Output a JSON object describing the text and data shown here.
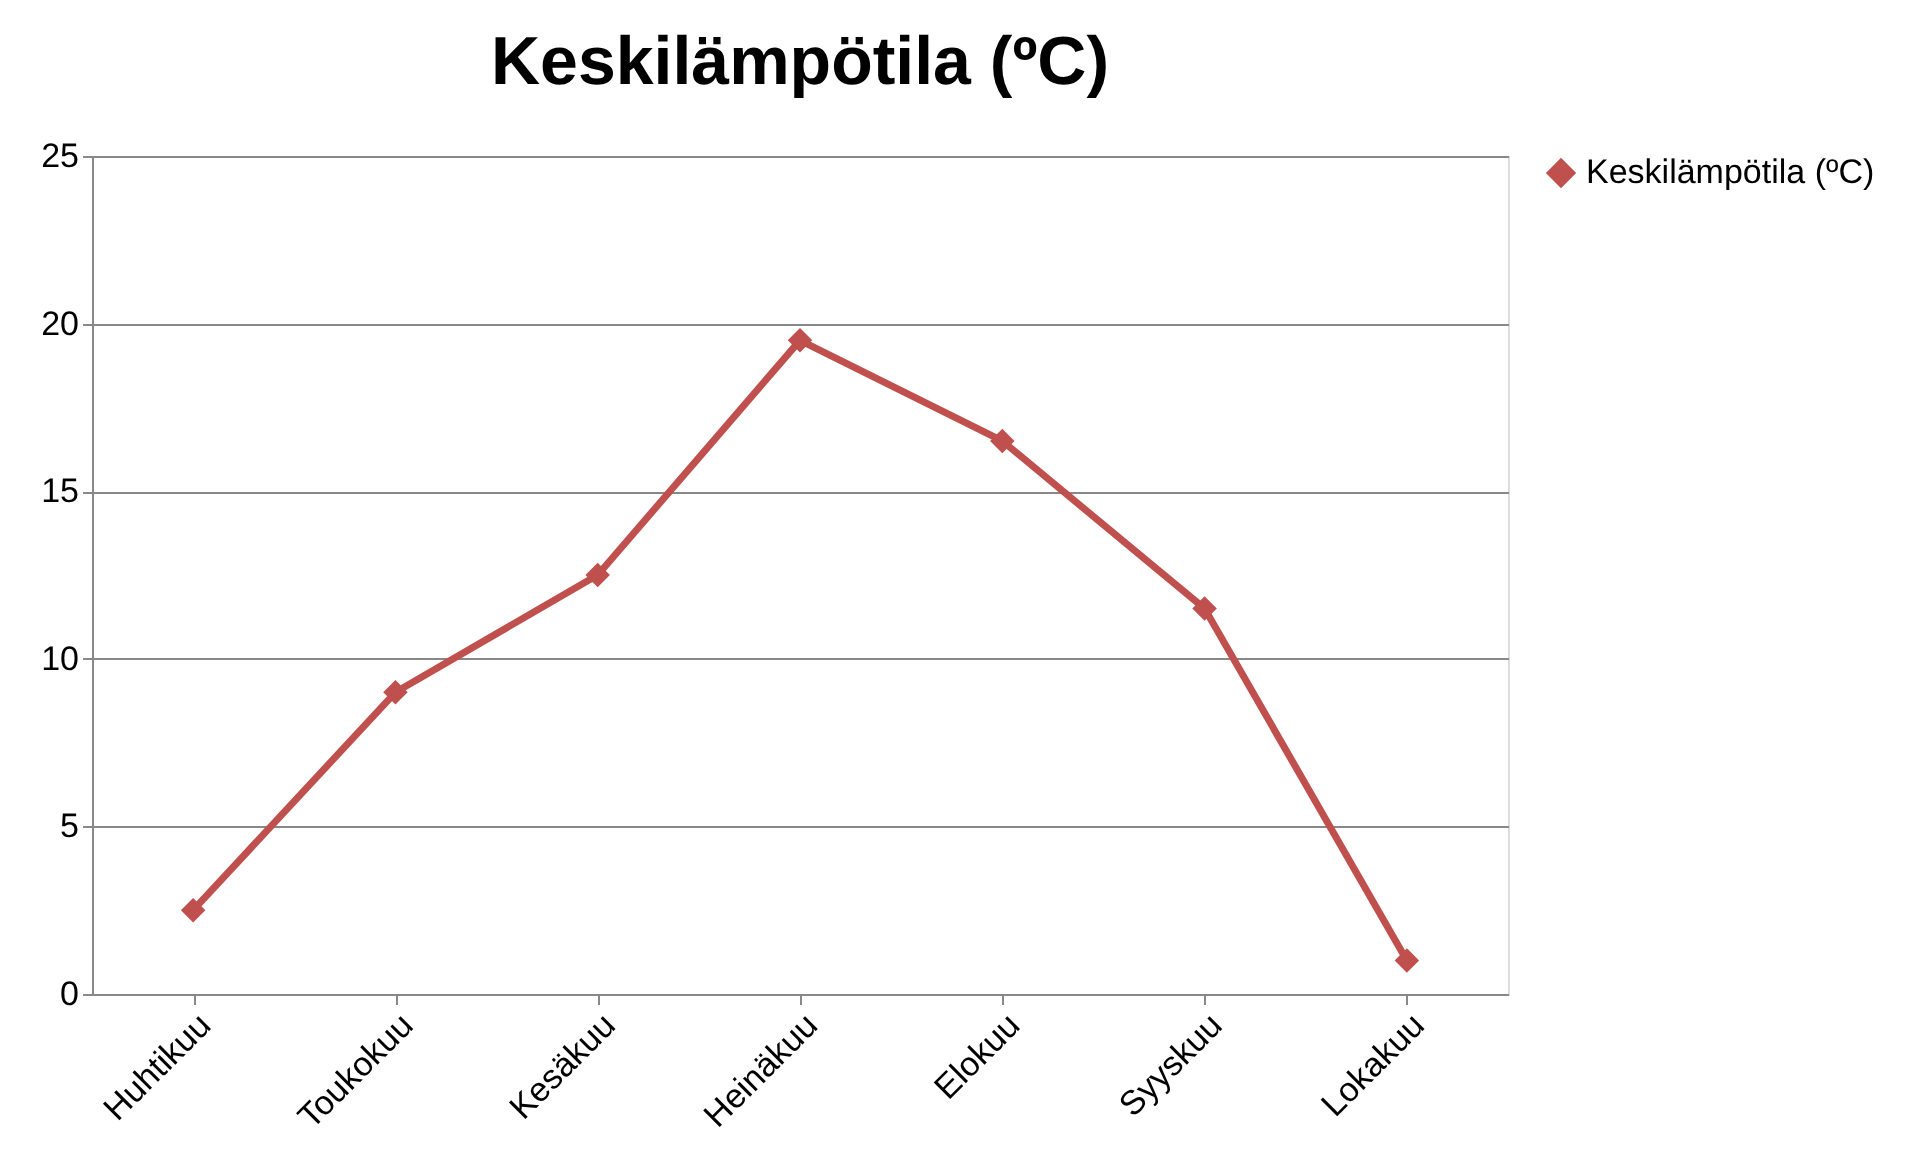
{
  "chart_data": {
    "type": "line",
    "title": "Keskilämpötila (ºC)",
    "categories": [
      "Huhtikuu",
      "Toukokuu",
      "Kesäkuu",
      "Heinäkuu",
      "Elokuu",
      "Syyskuu",
      "Lokakuu"
    ],
    "series": [
      {
        "name": "Keskilämpötila (ºC)",
        "color": "#c0504d",
        "values": [
          2.5,
          9,
          12.5,
          19.5,
          16.5,
          11.5,
          1
        ]
      }
    ],
    "ylim": [
      0,
      25
    ],
    "yticks": [
      0,
      5,
      10,
      15,
      20,
      25
    ],
    "grid": "y",
    "legend": "right",
    "marker": "diamond",
    "line_style": "solid"
  }
}
